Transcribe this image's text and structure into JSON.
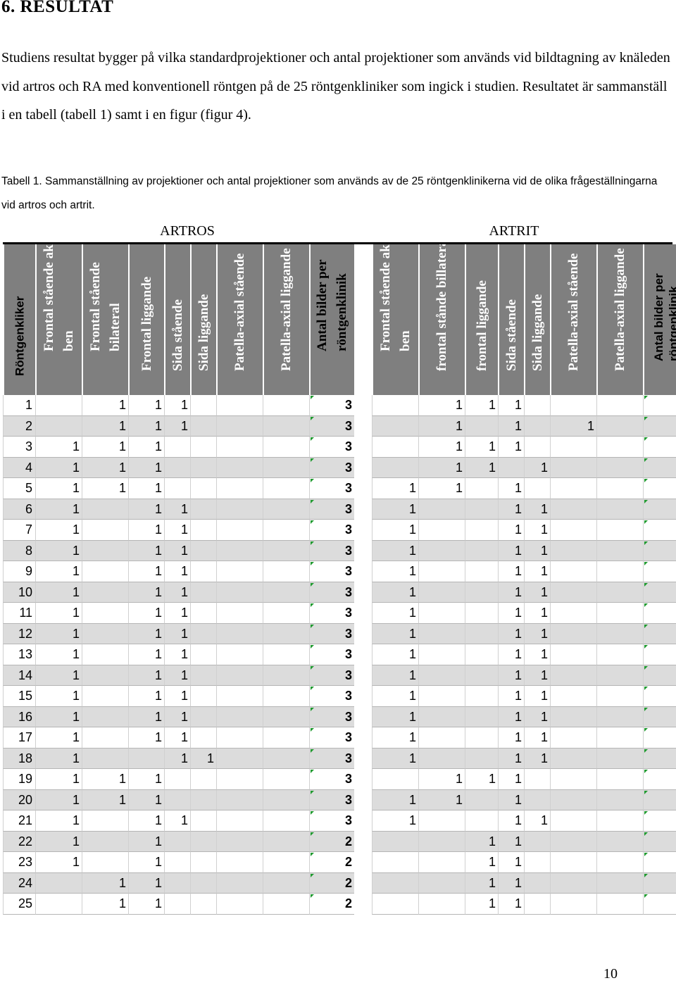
{
  "heading": "6. RESULTAT",
  "paragraph": "Studiens resultat bygger på vilka standardprojektioner och antal projektioner som används vid bildtagning av knäleden vid artros och RA med konventionell röntgen på de 25 röntgenkliniker som ingick i studien. Resultatet är sammanställ i en tabell (tabell 1) samt i en figur (figur 4).",
  "caption": "Tabell 1. Sammanställning av projektioner och antal projektioner som används av de 25 röntgenklinikerna vid de olika frågeställningarna vid artros och artrit.",
  "groups": {
    "artros": "ARTROS",
    "artrit": "ARTRIT"
  },
  "columns": [
    {
      "label": "Röntgenkliker",
      "style": "sans dark"
    },
    {
      "label": "Frontal stående aktuellt ben",
      "style": "serif"
    },
    {
      "label": "Frontal stående bilateral",
      "style": "serif"
    },
    {
      "label": "Frontal liggande",
      "style": "serif"
    },
    {
      "label": "Sida stående",
      "style": "serif"
    },
    {
      "label": "Sida liggande",
      "style": "serif"
    },
    {
      "label": "Patella-axial stående",
      "style": "serif"
    },
    {
      "label": "Patella-axial liggande",
      "style": "serif"
    },
    {
      "label": "Antal bilder per röntgenklinik",
      "style": "serif dark"
    },
    {
      "label": "",
      "style": "gap"
    },
    {
      "label": "Frontal stående aktuellt ben",
      "style": "serif"
    },
    {
      "label": "frontal stånde billateral",
      "style": "serif"
    },
    {
      "label": "frontal liggande",
      "style": "serif"
    },
    {
      "label": "Sida stående",
      "style": "serif"
    },
    {
      "label": "Sida liggande",
      "style": "serif"
    },
    {
      "label": "Patella-axial stående",
      "style": "serif"
    },
    {
      "label": "Patella-axial liggande",
      "style": "serif"
    },
    {
      "label": "Antal bilder per röntgenklinik",
      "style": "sans dark"
    }
  ],
  "rows": [
    [
      "1",
      "",
      "1",
      "1",
      "1",
      "",
      "",
      "",
      "3",
      "",
      "",
      "1",
      "1",
      "1",
      "",
      "",
      "",
      "3"
    ],
    [
      "2",
      "",
      "1",
      "1",
      "1",
      "",
      "",
      "",
      "3",
      "",
      "",
      "1",
      "",
      "1",
      "",
      "1",
      "",
      "3"
    ],
    [
      "3",
      "1",
      "1",
      "1",
      "",
      "",
      "",
      "",
      "3",
      "",
      "",
      "1",
      "1",
      "1",
      "",
      "",
      "",
      "3"
    ],
    [
      "4",
      "1",
      "1",
      "1",
      "",
      "",
      "",
      "",
      "3",
      "",
      "",
      "1",
      "1",
      "",
      "1",
      "",
      "",
      "3"
    ],
    [
      "5",
      "1",
      "1",
      "1",
      "",
      "",
      "",
      "",
      "3",
      "",
      "1",
      "1",
      "",
      "1",
      "",
      "",
      "",
      "3"
    ],
    [
      "6",
      "1",
      "",
      "1",
      "1",
      "",
      "",
      "",
      "3",
      "",
      "1",
      "",
      "",
      "1",
      "1",
      "",
      "",
      "3"
    ],
    [
      "7",
      "1",
      "",
      "1",
      "1",
      "",
      "",
      "",
      "3",
      "",
      "1",
      "",
      "",
      "1",
      "1",
      "",
      "",
      "3"
    ],
    [
      "8",
      "1",
      "",
      "1",
      "1",
      "",
      "",
      "",
      "3",
      "",
      "1",
      "",
      "",
      "1",
      "1",
      "",
      "",
      "3"
    ],
    [
      "9",
      "1",
      "",
      "1",
      "1",
      "",
      "",
      "",
      "3",
      "",
      "1",
      "",
      "",
      "1",
      "1",
      "",
      "",
      "3"
    ],
    [
      "10",
      "1",
      "",
      "1",
      "1",
      "",
      "",
      "",
      "3",
      "",
      "1",
      "",
      "",
      "1",
      "1",
      "",
      "",
      "3"
    ],
    [
      "11",
      "1",
      "",
      "1",
      "1",
      "",
      "",
      "",
      "3",
      "",
      "1",
      "",
      "",
      "1",
      "1",
      "",
      "",
      "3"
    ],
    [
      "12",
      "1",
      "",
      "1",
      "1",
      "",
      "",
      "",
      "3",
      "",
      "1",
      "",
      "",
      "1",
      "1",
      "",
      "",
      "3"
    ],
    [
      "13",
      "1",
      "",
      "1",
      "1",
      "",
      "",
      "",
      "3",
      "",
      "1",
      "",
      "",
      "1",
      "1",
      "",
      "",
      "3"
    ],
    [
      "14",
      "1",
      "",
      "1",
      "1",
      "",
      "",
      "",
      "3",
      "",
      "1",
      "",
      "",
      "1",
      "1",
      "",
      "",
      "3"
    ],
    [
      "15",
      "1",
      "",
      "1",
      "1",
      "",
      "",
      "",
      "3",
      "",
      "1",
      "",
      "",
      "1",
      "1",
      "",
      "",
      "3"
    ],
    [
      "16",
      "1",
      "",
      "1",
      "1",
      "",
      "",
      "",
      "3",
      "",
      "1",
      "",
      "",
      "1",
      "1",
      "",
      "",
      "3"
    ],
    [
      "17",
      "1",
      "",
      "1",
      "1",
      "",
      "",
      "",
      "3",
      "",
      "1",
      "",
      "",
      "1",
      "1",
      "",
      "",
      "3"
    ],
    [
      "18",
      "1",
      "",
      "",
      "1",
      "1",
      "",
      "",
      "3",
      "",
      "1",
      "",
      "",
      "1",
      "1",
      "",
      "",
      "3"
    ],
    [
      "19",
      "1",
      "1",
      "1",
      "",
      "",
      "",
      "",
      "3",
      "",
      "",
      "1",
      "1",
      "1",
      "",
      "",
      "",
      "3"
    ],
    [
      "20",
      "1",
      "1",
      "1",
      "",
      "",
      "",
      "",
      "3",
      "",
      "1",
      "1",
      "",
      "1",
      "",
      "",
      "",
      "3"
    ],
    [
      "21",
      "1",
      "",
      "1",
      "1",
      "",
      "",
      "",
      "3",
      "",
      "1",
      "",
      "",
      "1",
      "1",
      "",
      "",
      "3"
    ],
    [
      "22",
      "1",
      "",
      "1",
      "",
      "",
      "",
      "",
      "2",
      "",
      "",
      "",
      "1",
      "1",
      "",
      "",
      "",
      "2"
    ],
    [
      "23",
      "1",
      "",
      "1",
      "",
      "",
      "",
      "",
      "2",
      "",
      "",
      "",
      "1",
      "1",
      "",
      "",
      "",
      "2"
    ],
    [
      "24",
      "",
      "1",
      "1",
      "",
      "",
      "",
      "",
      "2",
      "",
      "",
      "",
      "1",
      "1",
      "",
      "",
      "",
      "2"
    ],
    [
      "25",
      "",
      "1",
      "1",
      "",
      "",
      "",
      "",
      "2",
      "",
      "",
      "",
      "1",
      "1",
      "",
      "",
      "",
      "2"
    ]
  ],
  "page_number": "10"
}
